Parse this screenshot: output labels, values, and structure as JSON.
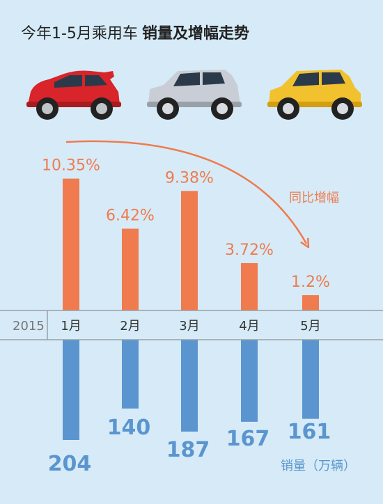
{
  "title": {
    "prefix": "今年1-5月乘用车",
    "bold": "销量及增幅走势"
  },
  "cars": [
    {
      "name": "red-car-icon",
      "color": "#d8242a"
    },
    {
      "name": "silver-car-icon",
      "color": "#c9ced6"
    },
    {
      "name": "yellow-car-icon",
      "color": "#f2c12e"
    }
  ],
  "chart_data": [
    {
      "type": "bar",
      "categories": [
        "1月",
        "2月",
        "3月",
        "4月",
        "5月"
      ],
      "values": [
        10.35,
        6.42,
        9.38,
        3.72,
        1.2
      ],
      "value_labels": [
        "10.35%",
        "6.42%",
        "9.38%",
        "3.72%",
        "1.2%"
      ],
      "series_label": "同比增幅",
      "color": "#ef7b4f"
    },
    {
      "type": "bar",
      "categories": [
        "1月",
        "2月",
        "3月",
        "4月",
        "5月"
      ],
      "values": [
        204,
        140,
        187,
        167,
        161
      ],
      "value_labels": [
        "204",
        "140",
        "187",
        "167",
        "161"
      ],
      "series_label": "销量（万辆）",
      "color": "#5b95cf"
    }
  ],
  "year_label": "2015",
  "colors": {
    "background": "#d6ebf7",
    "growth": "#ef7b4f",
    "sales": "#5b95cf",
    "axis": "#9aa0a6"
  }
}
